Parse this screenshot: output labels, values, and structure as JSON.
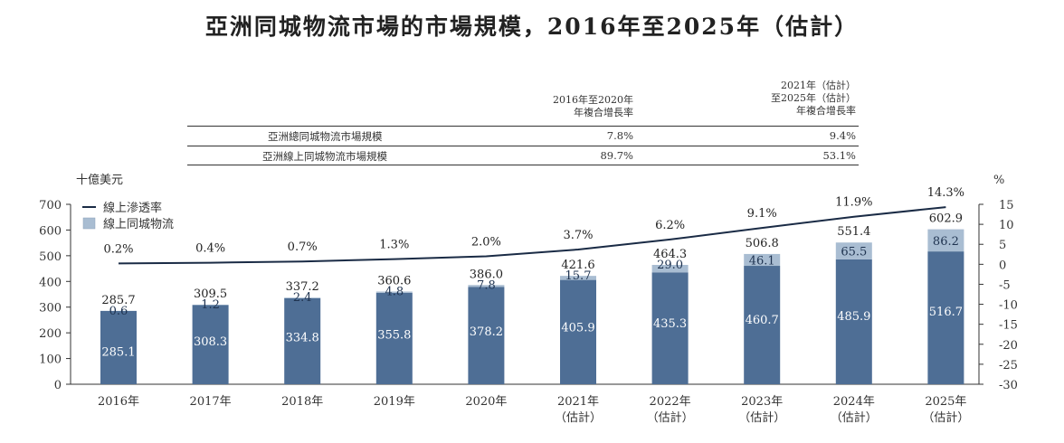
{
  "title": "亞洲同城物流市場的市場規模，2016年至2025年（估計）",
  "cagr_table": {
    "col1_header": [
      "2016年至2020年",
      "年複合增長率"
    ],
    "col2_header": [
      "2021年（估計）",
      "至2025年（估計）",
      "年複合增長率"
    ],
    "rows": [
      {
        "label": "亞洲總同城物流市場規模",
        "v1": "7.8%",
        "v2": "9.4%"
      },
      {
        "label": "亞洲線上同城物流市場規模",
        "v1": "89.7%",
        "v2": "53.1%"
      }
    ]
  },
  "chart_data": {
    "type": "bar",
    "left_axis_unit": "十億美元",
    "right_axis_unit": "%",
    "categories": [
      [
        "2016年"
      ],
      [
        "2017年"
      ],
      [
        "2018年"
      ],
      [
        "2019年"
      ],
      [
        "2020年"
      ],
      [
        "2021年",
        "（估計）"
      ],
      [
        "2022年",
        "（估計）"
      ],
      [
        "2023年",
        "（估計）"
      ],
      [
        "2024年",
        "（估計）"
      ],
      [
        "2025年",
        "（估計）"
      ]
    ],
    "series": [
      {
        "name": "",
        "kind": "stacked-bar-base",
        "color": "#4e6e95",
        "values": [
          285.1,
          308.3,
          334.8,
          355.8,
          378.2,
          405.9,
          435.3,
          460.7,
          485.9,
          516.7
        ]
      },
      {
        "name": "線上同城物流",
        "kind": "stacked-bar-top",
        "color": "#a9bdd2",
        "values": [
          0.6,
          1.2,
          2.4,
          4.8,
          7.8,
          15.7,
          29.0,
          46.1,
          65.5,
          86.2
        ]
      },
      {
        "name": "線上滲透率",
        "kind": "line",
        "axis": "right",
        "color": "#1a2b45",
        "values": [
          0.2,
          0.4,
          0.7,
          1.3,
          2.0,
          3.7,
          6.2,
          9.1,
          11.9,
          14.3
        ],
        "labels": [
          "0.2%",
          "0.4%",
          "0.7%",
          "1.3%",
          "2.0%",
          "3.7%",
          "6.2%",
          "9.1%",
          "11.9%",
          "14.3%"
        ]
      }
    ],
    "totals": [
      285.7,
      309.5,
      337.2,
      360.6,
      386.0,
      421.6,
      464.3,
      506.8,
      551.4,
      602.9
    ],
    "ylim_left": [
      0,
      700
    ],
    "yticks_left": [
      0,
      100,
      200,
      300,
      400,
      500,
      600,
      700
    ],
    "ylim_right": [
      -30,
      15
    ],
    "yticks_right": [
      15,
      10,
      5,
      0,
      -5,
      -10,
      -15,
      -20,
      -25,
      -30
    ],
    "legend_position": "top-left",
    "grid": false
  }
}
